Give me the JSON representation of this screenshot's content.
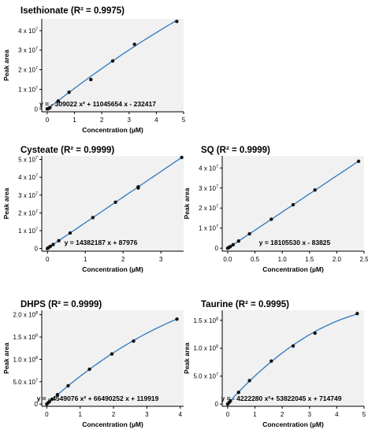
{
  "chart_data": [
    {
      "type": "scatter",
      "title": "Isethionate (R² = 0.9975)",
      "xlabel": "Concentration (µM)",
      "ylabel": "Peak area",
      "xlim": [
        -0.2,
        5
      ],
      "ylim": [
        -1500000,
        46000000
      ],
      "xticks": [
        0,
        1,
        2,
        3,
        4,
        5
      ],
      "yticks": [
        0,
        10000000,
        20000000,
        30000000,
        40000000
      ],
      "ytick_labels": [
        "0",
        "1 x 10",
        "2 x 10",
        "3 x 10",
        "4 x 10"
      ],
      "ytick_exp": "7",
      "grid": false,
      "x": [
        0,
        0.05,
        0.1,
        0.4,
        0.8,
        1.6,
        2.4,
        3.2,
        4.75
      ],
      "y": [
        0,
        200000,
        700000,
        4000000,
        8500000,
        15000000,
        24500000,
        33000000,
        44700000
      ],
      "fit_coeffs": [
        -232417,
        11045654,
        -309022
      ],
      "equation": "y =  - 309022 x² + 11045654 x - 232417"
    },
    {
      "type": "scatter",
      "title": "Cysteate (R² = 0.9999)",
      "xlabel": "Concentration (µM)",
      "ylabel": "Peak area",
      "xlim": [
        -0.15,
        3.6
      ],
      "ylim": [
        -1500000,
        52000000
      ],
      "xticks": [
        0,
        1,
        2,
        3
      ],
      "yticks": [
        0,
        10000000,
        20000000,
        30000000,
        40000000,
        50000000
      ],
      "ytick_labels": [
        "0",
        "1 x 10",
        "2 x 10",
        "3 x 10",
        "4 x 10",
        "5 x 10"
      ],
      "ytick_exp": "7",
      "grid": false,
      "x": [
        0,
        0.03,
        0.075,
        0.15,
        0.3,
        0.6,
        1.2,
        1.8,
        2.4,
        2.4,
        3.55
      ],
      "y": [
        0,
        500000,
        1170000,
        2250000,
        4400000,
        8700000,
        17350000,
        26000000,
        34000000,
        34600000,
        51150000
      ],
      "fit_coeffs": [
        87976,
        14382187
      ],
      "equation": "y = 14382187 x + 87976"
    },
    {
      "type": "scatter",
      "title": "SQ (R² = 0.9999)",
      "xlabel": "Concentration (µM)",
      "ylabel": "Peak area",
      "xlim": [
        -0.1,
        2.5
      ],
      "ylim": [
        -1500000,
        46000000
      ],
      "xticks": [
        0.0,
        0.5,
        1.0,
        1.5,
        2.0,
        2.5
      ],
      "xtick_labels": [
        "0.0",
        "0.5",
        "1.0",
        "1.5",
        "2.0",
        "2.5"
      ],
      "yticks": [
        0,
        10000000,
        20000000,
        30000000,
        40000000
      ],
      "ytick_labels": [
        "0",
        "1 x 10",
        "2 x 10",
        "3 x 10",
        "4 x 10"
      ],
      "ytick_exp": "7",
      "grid": false,
      "x": [
        0,
        0.025,
        0.05,
        0.1,
        0.2,
        0.4,
        0.8,
        1.2,
        1.6,
        2.4
      ],
      "y": [
        0,
        400000,
        850000,
        1700000,
        3550000,
        7160000,
        14400000,
        21650000,
        29000000,
        43300000
      ],
      "fit_coeffs": [
        -83825,
        18105530
      ],
      "equation": "y = 18105530 x - 83825"
    },
    {
      "type": "scatter",
      "title": "DHPS (R² = 0.9999)",
      "xlabel": "Concentration (µM)",
      "ylabel": "Peak area",
      "xlim": [
        -0.15,
        4.1
      ],
      "ylim": [
        -5000000,
        210000000
      ],
      "xticks": [
        0,
        1,
        2,
        3,
        4
      ],
      "yticks": [
        0,
        50000000,
        100000000,
        150000000,
        200000000
      ],
      "ytick_labels": [
        "0",
        "5.0 x 10",
        "1.0 x 10",
        "1.5 x 10",
        "2.0 x 10"
      ],
      "ytick_exp": [
        "",
        "7",
        "8",
        "8",
        "8"
      ],
      "grid": false,
      "x": [
        0,
        0.04,
        0.08,
        0.16,
        0.32,
        0.64,
        1.28,
        1.95,
        2.6,
        3.9
      ],
      "y": [
        0,
        2800000,
        5400000,
        10700000,
        21000000,
        41000000,
        78000000,
        112000000,
        141000000,
        190000000
      ],
      "fit_coeffs": [
        119919,
        66490252,
        -4549076
      ],
      "equation": "y =  - 4549076 x² + 66490252 x + 119919"
    },
    {
      "type": "scatter",
      "title": "Taurine (R² = 0.9995)",
      "xlabel": "Concentration (µM)",
      "ylabel": "Peak area",
      "xlim": [
        -0.2,
        5
      ],
      "ylim": [
        -4000000,
        168000000
      ],
      "xticks": [
        0,
        1,
        2,
        3,
        4,
        5
      ],
      "yticks": [
        0,
        50000000,
        100000000,
        150000000
      ],
      "ytick_labels": [
        "0",
        "5.0 x 10",
        "1.0 x 10",
        "1.5 x 10"
      ],
      "ytick_exp": [
        "",
        "7",
        "8",
        "8"
      ],
      "grid": false,
      "x": [
        0,
        0.05,
        0.1,
        0.4,
        0.8,
        1.6,
        2.4,
        3.2,
        4.75
      ],
      "y": [
        0,
        2600000,
        5500000,
        21000000,
        42000000,
        77000000,
        104000000,
        127000000,
        162000000
      ],
      "fit_coeffs": [
        714749,
        53822045,
        -4222280
      ],
      "equation": "y =  - 4222280 x²+ 53822045 x + 714749"
    }
  ],
  "colors": {
    "panel_bg": "#f1f1f1",
    "fit_line": "#3a7fc1",
    "points": "#111111",
    "axis": "#000000"
  }
}
